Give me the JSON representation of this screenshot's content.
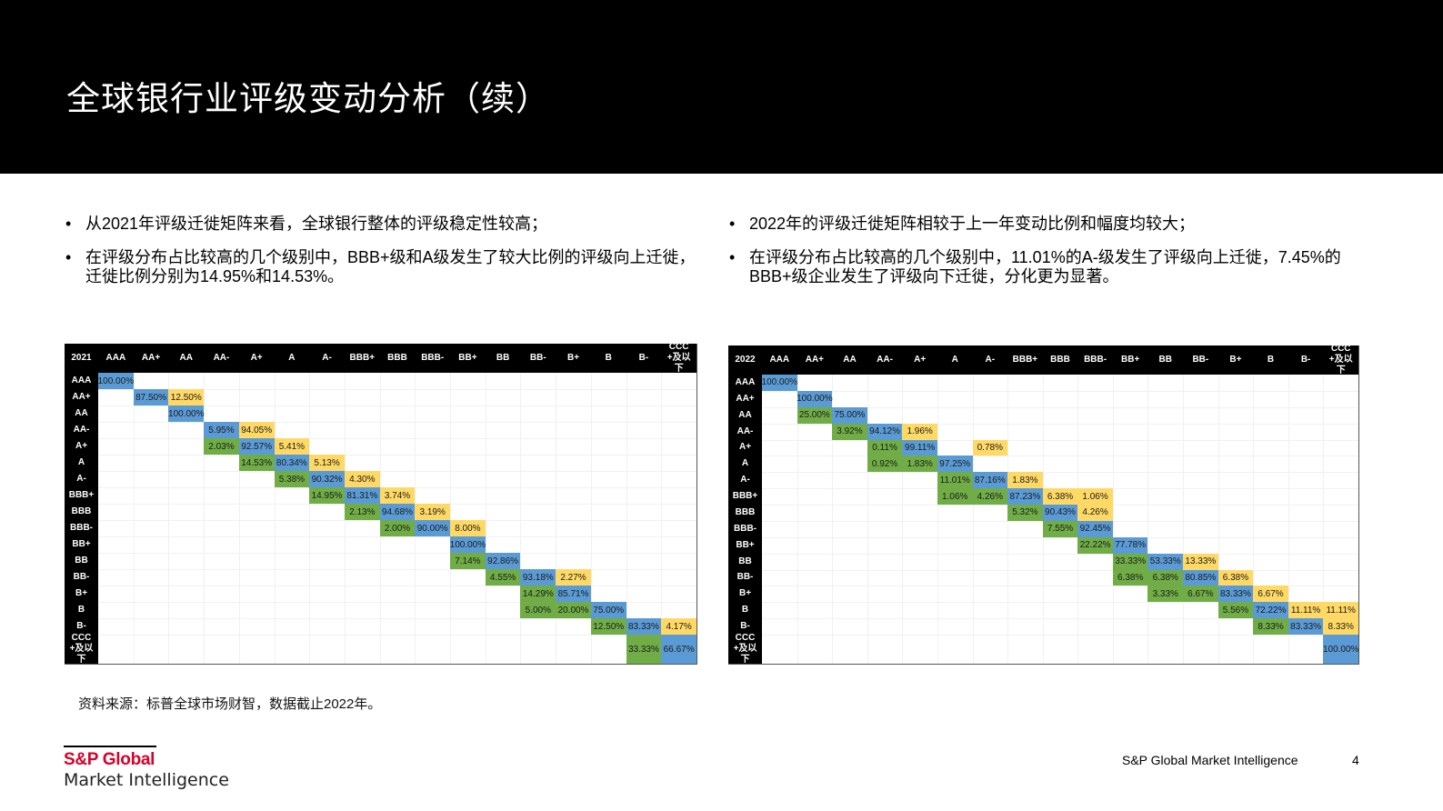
{
  "header": {
    "title": "全球银行业评级变动分析（续）"
  },
  "left_panel": {
    "bullets": [
      "从2021年评级迁徙矩阵来看，全球银行整体的评级稳定性较高；",
      "在评级分布占比较高的几个级别中，BBB+级和A级发生了较大比例的评级向上迁徙，迁徙比例分别为14.95%和14.53%。"
    ]
  },
  "right_panel": {
    "bullets": [
      "2022年的评级迁徙矩阵相较于上一年变动比例和幅度均较大；",
      "在评级分布占比较高的几个级别中，11.01%的A-级发生了评级向上迁徙，7.45%的BBB+级企业发生了评级向下迁徙，分化更为显著。"
    ]
  },
  "bullet_glyph": "•",
  "colors": {
    "upgrade": "#70ad47",
    "stable": "#5b9bd5",
    "downgrade": "#ffd966",
    "header_bg": "#000000",
    "brand_red": "#d6002a"
  },
  "chart_data": [
    {
      "type": "table",
      "title": "2021",
      "columns": [
        "AAA",
        "AA+",
        "AA",
        "AA-",
        "A+",
        "A",
        "A-",
        "BBB+",
        "BBB",
        "BBB-",
        "BB+",
        "BB",
        "BB-",
        "B+",
        "B",
        "B-",
        "CCC+及以下"
      ],
      "rows": [
        "AAA",
        "AA+",
        "AA",
        "AA-",
        "A+",
        "A",
        "A-",
        "BBB+",
        "BBB",
        "BBB-",
        "BB+",
        "BB",
        "BB-",
        "B+",
        "B",
        "B-",
        "CCC+及以下"
      ],
      "cells": [
        {
          "r": 0,
          "c": 0,
          "v": "100.00%",
          "t": "stay"
        },
        {
          "r": 1,
          "c": 1,
          "v": "87.50%",
          "t": "stay"
        },
        {
          "r": 1,
          "c": 2,
          "v": "12.50%",
          "t": "down"
        },
        {
          "r": 2,
          "c": 2,
          "v": "100.00%",
          "t": "stay"
        },
        {
          "r": 3,
          "c": 3,
          "v": "5.95%",
          "t": "stay"
        },
        {
          "r": 3,
          "c": 4,
          "v": "94.05%",
          "t": "down"
        },
        {
          "r": 4,
          "c": 3,
          "v": "2.03%",
          "t": "up"
        },
        {
          "r": 4,
          "c": 4,
          "v": "92.57%",
          "t": "stay"
        },
        {
          "r": 4,
          "c": 5,
          "v": "5.41%",
          "t": "down"
        },
        {
          "r": 5,
          "c": 4,
          "v": "14.53%",
          "t": "up"
        },
        {
          "r": 5,
          "c": 5,
          "v": "80.34%",
          "t": "stay"
        },
        {
          "r": 5,
          "c": 6,
          "v": "5.13%",
          "t": "down"
        },
        {
          "r": 6,
          "c": 5,
          "v": "5.38%",
          "t": "up"
        },
        {
          "r": 6,
          "c": 6,
          "v": "90.32%",
          "t": "stay"
        },
        {
          "r": 6,
          "c": 7,
          "v": "4.30%",
          "t": "down"
        },
        {
          "r": 7,
          "c": 6,
          "v": "14.95%",
          "t": "up"
        },
        {
          "r": 7,
          "c": 7,
          "v": "81.31%",
          "t": "stay"
        },
        {
          "r": 7,
          "c": 8,
          "v": "3.74%",
          "t": "down"
        },
        {
          "r": 8,
          "c": 7,
          "v": "2.13%",
          "t": "up"
        },
        {
          "r": 8,
          "c": 8,
          "v": "94.68%",
          "t": "stay"
        },
        {
          "r": 8,
          "c": 9,
          "v": "3.19%",
          "t": "down"
        },
        {
          "r": 9,
          "c": 8,
          "v": "2.00%",
          "t": "up"
        },
        {
          "r": 9,
          "c": 9,
          "v": "90.00%",
          "t": "stay"
        },
        {
          "r": 9,
          "c": 10,
          "v": "8.00%",
          "t": "down"
        },
        {
          "r": 10,
          "c": 10,
          "v": "100.00%",
          "t": "stay"
        },
        {
          "r": 11,
          "c": 10,
          "v": "7.14%",
          "t": "up"
        },
        {
          "r": 11,
          "c": 11,
          "v": "92.86%",
          "t": "stay"
        },
        {
          "r": 12,
          "c": 11,
          "v": "4.55%",
          "t": "up"
        },
        {
          "r": 12,
          "c": 12,
          "v": "93.18%",
          "t": "stay"
        },
        {
          "r": 12,
          "c": 13,
          "v": "2.27%",
          "t": "down"
        },
        {
          "r": 13,
          "c": 12,
          "v": "14.29%",
          "t": "up"
        },
        {
          "r": 13,
          "c": 13,
          "v": "85.71%",
          "t": "stay"
        },
        {
          "r": 14,
          "c": 12,
          "v": "5.00%",
          "t": "up"
        },
        {
          "r": 14,
          "c": 13,
          "v": "20.00%",
          "t": "up"
        },
        {
          "r": 14,
          "c": 14,
          "v": "75.00%",
          "t": "stay"
        },
        {
          "r": 15,
          "c": 14,
          "v": "12.50%",
          "t": "up"
        },
        {
          "r": 15,
          "c": 15,
          "v": "83.33%",
          "t": "stay"
        },
        {
          "r": 15,
          "c": 16,
          "v": "4.17%",
          "t": "down"
        },
        {
          "r": 16,
          "c": 15,
          "v": "33.33%",
          "t": "up"
        },
        {
          "r": 16,
          "c": 16,
          "v": "66.67%",
          "t": "stay"
        }
      ]
    },
    {
      "type": "table",
      "title": "2022",
      "columns": [
        "AAA",
        "AA+",
        "AA",
        "AA-",
        "A+",
        "A",
        "A-",
        "BBB+",
        "BBB",
        "BBB-",
        "BB+",
        "BB",
        "BB-",
        "B+",
        "B",
        "B-",
        "CCC+及以下"
      ],
      "rows": [
        "AAA",
        "AA+",
        "AA",
        "AA-",
        "A+",
        "A",
        "A-",
        "BBB+",
        "BBB",
        "BBB-",
        "BB+",
        "BB",
        "BB-",
        "B+",
        "B",
        "B-",
        "CCC+及以下"
      ],
      "cells": [
        {
          "r": 0,
          "c": 0,
          "v": "100.00%",
          "t": "stay"
        },
        {
          "r": 1,
          "c": 1,
          "v": "100.00%",
          "t": "stay"
        },
        {
          "r": 2,
          "c": 1,
          "v": "25.00%",
          "t": "up"
        },
        {
          "r": 2,
          "c": 2,
          "v": "75.00%",
          "t": "stay"
        },
        {
          "r": 3,
          "c": 2,
          "v": "3.92%",
          "t": "up"
        },
        {
          "r": 3,
          "c": 3,
          "v": "94.12%",
          "t": "stay"
        },
        {
          "r": 3,
          "c": 4,
          "v": "1.96%",
          "t": "down"
        },
        {
          "r": 4,
          "c": 3,
          "v": "0.11%",
          "t": "up"
        },
        {
          "r": 4,
          "c": 4,
          "v": "99.11%",
          "t": "stay"
        },
        {
          "r": 4,
          "c": 6,
          "v": "0.78%",
          "t": "down"
        },
        {
          "r": 5,
          "c": 3,
          "v": "0.92%",
          "t": "up"
        },
        {
          "r": 5,
          "c": 4,
          "v": "1.83%",
          "t": "up"
        },
        {
          "r": 5,
          "c": 5,
          "v": "97.25%",
          "t": "stay"
        },
        {
          "r": 6,
          "c": 5,
          "v": "11.01%",
          "t": "up"
        },
        {
          "r": 6,
          "c": 6,
          "v": "87.16%",
          "t": "stay"
        },
        {
          "r": 6,
          "c": 7,
          "v": "1.83%",
          "t": "down"
        },
        {
          "r": 7,
          "c": 5,
          "v": "1.06%",
          "t": "up"
        },
        {
          "r": 7,
          "c": 6,
          "v": "4.26%",
          "t": "up"
        },
        {
          "r": 7,
          "c": 7,
          "v": "87.23%",
          "t": "stay"
        },
        {
          "r": 7,
          "c": 8,
          "v": "6.38%",
          "t": "down"
        },
        {
          "r": 7,
          "c": 9,
          "v": "1.06%",
          "t": "down"
        },
        {
          "r": 8,
          "c": 7,
          "v": "5.32%",
          "t": "up"
        },
        {
          "r": 8,
          "c": 8,
          "v": "90.43%",
          "t": "stay"
        },
        {
          "r": 8,
          "c": 9,
          "v": "4.26%",
          "t": "down"
        },
        {
          "r": 9,
          "c": 8,
          "v": "7.55%",
          "t": "up"
        },
        {
          "r": 9,
          "c": 9,
          "v": "92.45%",
          "t": "stay"
        },
        {
          "r": 10,
          "c": 9,
          "v": "22.22%",
          "t": "up"
        },
        {
          "r": 10,
          "c": 10,
          "v": "77.78%",
          "t": "stay"
        },
        {
          "r": 11,
          "c": 10,
          "v": "33.33%",
          "t": "up"
        },
        {
          "r": 11,
          "c": 11,
          "v": "53.33%",
          "t": "stay"
        },
        {
          "r": 11,
          "c": 12,
          "v": "13.33%",
          "t": "down"
        },
        {
          "r": 12,
          "c": 10,
          "v": "6.38%",
          "t": "up"
        },
        {
          "r": 12,
          "c": 11,
          "v": "6.38%",
          "t": "up"
        },
        {
          "r": 12,
          "c": 12,
          "v": "80.85%",
          "t": "stay"
        },
        {
          "r": 12,
          "c": 13,
          "v": "6.38%",
          "t": "down"
        },
        {
          "r": 13,
          "c": 11,
          "v": "3.33%",
          "t": "up"
        },
        {
          "r": 13,
          "c": 12,
          "v": "6.67%",
          "t": "up"
        },
        {
          "r": 13,
          "c": 13,
          "v": "83.33%",
          "t": "stay"
        },
        {
          "r": 13,
          "c": 14,
          "v": "6.67%",
          "t": "down"
        },
        {
          "r": 14,
          "c": 13,
          "v": "5.56%",
          "t": "up"
        },
        {
          "r": 14,
          "c": 14,
          "v": "72.22%",
          "t": "stay"
        },
        {
          "r": 14,
          "c": 15,
          "v": "11.11%",
          "t": "down"
        },
        {
          "r": 14,
          "c": 16,
          "v": "11.11%",
          "t": "down"
        },
        {
          "r": 15,
          "c": 14,
          "v": "8.33%",
          "t": "up"
        },
        {
          "r": 15,
          "c": 15,
          "v": "83.33%",
          "t": "stay"
        },
        {
          "r": 15,
          "c": 16,
          "v": "8.33%",
          "t": "down"
        },
        {
          "r": 16,
          "c": 16,
          "v": "100.00%",
          "t": "stay"
        }
      ]
    }
  ],
  "source_note": "资料来源：标普全球市场财智，数据截止2022年。",
  "logo": {
    "line1": "S&P Global",
    "line2": "Market Intelligence"
  },
  "footer": {
    "brand": "S&P Global Market Intelligence",
    "page_number": "4"
  }
}
